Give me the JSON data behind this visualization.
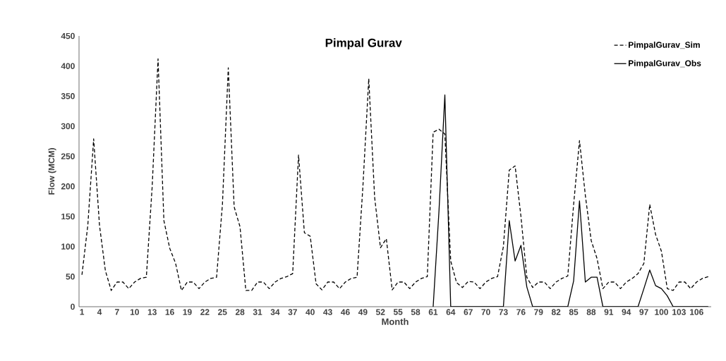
{
  "chart_data": {
    "type": "line",
    "title": "Pimpal Gurav",
    "xlabel": "Month",
    "ylabel": "Flow (MCM)",
    "categories": [
      "1",
      null,
      null,
      "4",
      null,
      null,
      "7",
      null,
      null,
      "10",
      null,
      null,
      "13",
      null,
      null,
      "16",
      null,
      null,
      "19",
      null,
      null,
      "22",
      null,
      null,
      "25",
      null,
      null,
      "28",
      null,
      null,
      "31",
      null,
      null,
      "34",
      null,
      null,
      "37",
      null,
      null,
      "40",
      null,
      null,
      "43",
      null,
      null,
      "46",
      null,
      null,
      "49",
      null,
      null,
      "52",
      null,
      null,
      "55",
      null,
      null,
      "58",
      null,
      null,
      "61",
      null,
      null,
      "64",
      null,
      null,
      "67",
      null,
      null,
      "70",
      null,
      null,
      "73",
      null,
      null,
      "76",
      null,
      null,
      "79",
      null,
      null,
      "82",
      null,
      null,
      "85",
      null,
      null,
      "88",
      null,
      null,
      "91",
      null,
      null,
      "94",
      null,
      null,
      "97",
      null,
      null,
      "100",
      null,
      null,
      "103",
      null,
      null,
      "106",
      null,
      null
    ],
    "series": [
      {
        "name": "PimpalGurav_Sim",
        "color": "#000000",
        "line_style": "dashed",
        "values": [
          53,
          135,
          279,
          135,
          60,
          27,
          41,
          41,
          30,
          41,
          47,
          49,
          200,
          412,
          143,
          97,
          72,
          27,
          41,
          41,
          30,
          41,
          47,
          49,
          170,
          397,
          166,
          133,
          27,
          27,
          41,
          41,
          30,
          41,
          47,
          50,
          55,
          252,
          123,
          117,
          38,
          28,
          41,
          41,
          30,
          41,
          47,
          49,
          200,
          379,
          182,
          98,
          113,
          28,
          41,
          41,
          30,
          41,
          47,
          50,
          290,
          295,
          287,
          76,
          40,
          32,
          42,
          41,
          30,
          41,
          47,
          50,
          100,
          227,
          234,
          150,
          49,
          32,
          41,
          41,
          30,
          41,
          47,
          51,
          170,
          276,
          185,
          110,
          80,
          30,
          41,
          41,
          30,
          41,
          47,
          55,
          72,
          170,
          120,
          92,
          30,
          27,
          41,
          41,
          30,
          41,
          47,
          50
        ]
      },
      {
        "name": "PimpalGurav_Obs",
        "color": "#000000",
        "line_style": "solid",
        "values": [
          null,
          null,
          null,
          null,
          null,
          null,
          null,
          null,
          null,
          null,
          null,
          null,
          null,
          null,
          null,
          null,
          null,
          null,
          null,
          null,
          null,
          null,
          null,
          null,
          null,
          null,
          null,
          null,
          null,
          null,
          null,
          null,
          null,
          null,
          null,
          null,
          null,
          null,
          null,
          null,
          null,
          null,
          null,
          null,
          null,
          null,
          null,
          null,
          null,
          null,
          null,
          null,
          null,
          null,
          null,
          null,
          null,
          null,
          null,
          null,
          0,
          160,
          352,
          0,
          0,
          0,
          0,
          0,
          0,
          0,
          0,
          0,
          0,
          143,
          76,
          102,
          33,
          0,
          0,
          0,
          0,
          0,
          0,
          0,
          43,
          176,
          41,
          49,
          49,
          0,
          0,
          0,
          0,
          0,
          0,
          0,
          30,
          61,
          35,
          30,
          18,
          0,
          0,
          0,
          0,
          0,
          0,
          0
        ]
      }
    ],
    "ylim": [
      0,
      450
    ],
    "yticks": [
      0,
      50,
      100,
      150,
      200,
      250,
      300,
      350,
      400,
      450
    ],
    "grid": false,
    "legend": "top right",
    "marker": "none"
  }
}
